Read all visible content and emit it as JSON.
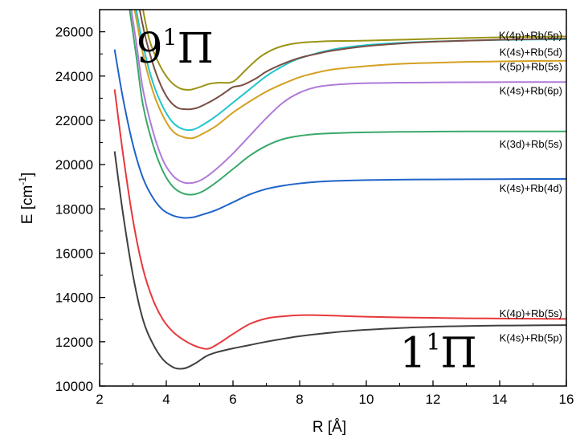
{
  "chart_data": {
    "type": "line",
    "title": "",
    "xlabel": "R [Å]",
    "ylabel_main": "E [cm",
    "ylabel_sup": "-1",
    "ylabel_tail": "]",
    "xlim": [
      2,
      16
    ],
    "ylim": [
      10000,
      27000
    ],
    "xticks": [
      2,
      4,
      6,
      8,
      10,
      12,
      14,
      16
    ],
    "yticks": [
      10000,
      12000,
      14000,
      16000,
      18000,
      20000,
      22000,
      24000,
      26000
    ],
    "grid": false,
    "legend": "none",
    "annotations": [
      {
        "main": "9",
        "sup": "1",
        "tail": "Π",
        "anchor": [
          3.1,
          24600
        ]
      },
      {
        "main": "1",
        "sup": "1",
        "tail": "Π",
        "anchor": [
          11.0,
          10850
        ]
      }
    ],
    "series": [
      {
        "name": "K(4s)+Rb(5p)",
        "color": "#404040",
        "label_y": 12200,
        "x": [
          2.45,
          2.7,
          3.0,
          3.3,
          3.6,
          3.9,
          4.2,
          4.4,
          4.6,
          4.9,
          5.2,
          5.5,
          6.0,
          6.5,
          7.0,
          8.0,
          9.0,
          10.0,
          11.0,
          12.0,
          13.0,
          14.0,
          15.0,
          16.0
        ],
        "y": [
          20600,
          17800,
          15000,
          13000,
          11900,
          11200,
          10850,
          10780,
          10820,
          11050,
          11350,
          11520,
          11700,
          11850,
          12000,
          12250,
          12420,
          12540,
          12620,
          12680,
          12710,
          12730,
          12740,
          12750
        ]
      },
      {
        "name": "K(4p)+Rb(5s)",
        "color": "#e8383b",
        "label_y": 13300,
        "x": [
          2.45,
          2.7,
          3.0,
          3.3,
          3.6,
          3.9,
          4.2,
          4.5,
          4.8,
          5.1,
          5.3,
          5.6,
          6.0,
          6.5,
          7.0,
          7.5,
          8.0,
          8.5,
          9.0,
          10.0,
          11.0,
          12.0,
          13.0,
          14.0,
          15.0,
          16.0
        ],
        "y": [
          23400,
          20500,
          17500,
          15300,
          13900,
          13000,
          12450,
          12100,
          11850,
          11700,
          11700,
          11950,
          12350,
          12800,
          13050,
          13150,
          13200,
          13200,
          13180,
          13130,
          13100,
          13080,
          13060,
          13050,
          13040,
          13030
        ]
      },
      {
        "name": "K(4s)+Rb(4d)",
        "color": "#1f64c8",
        "label_y": 18950,
        "x": [
          2.45,
          2.7,
          3.0,
          3.3,
          3.6,
          3.9,
          4.2,
          4.5,
          4.8,
          5.1,
          5.5,
          6.0,
          6.5,
          7.0,
          7.5,
          8.0,
          8.5,
          9.0,
          10.0,
          11.0,
          12.0,
          13.0,
          14.0,
          15.0,
          16.0
        ],
        "y": [
          25200,
          23000,
          20900,
          19400,
          18500,
          17950,
          17700,
          17600,
          17620,
          17750,
          17950,
          18300,
          18650,
          18900,
          19050,
          19150,
          19220,
          19260,
          19300,
          19320,
          19330,
          19340,
          19345,
          19350,
          19350
        ]
      },
      {
        "name": "K(3d)+Rb(5s)",
        "color": "#3aa86a",
        "label_y": 20950,
        "x": [
          2.9,
          3.1,
          3.3,
          3.6,
          3.9,
          4.2,
          4.5,
          4.8,
          5.1,
          5.5,
          6.0,
          6.5,
          7.0,
          7.5,
          8.0,
          8.5,
          9.0,
          10.0,
          11.0,
          12.0,
          13.0,
          14.0,
          15.0,
          16.0
        ],
        "y": [
          27000,
          24900,
          22700,
          20900,
          19700,
          19000,
          18700,
          18650,
          18800,
          19200,
          19800,
          20400,
          20850,
          21150,
          21300,
          21380,
          21420,
          21460,
          21480,
          21490,
          21500,
          21500,
          21500,
          21500
        ]
      },
      {
        "name": "K(4s)+Rb(6p)",
        "color": "#b07ad8",
        "label_y": 23350,
        "x": [
          2.95,
          3.1,
          3.3,
          3.6,
          3.9,
          4.2,
          4.5,
          4.8,
          5.1,
          5.5,
          6.0,
          6.5,
          7.0,
          7.5,
          8.0,
          8.5,
          9.0,
          9.5,
          10.0,
          11.0,
          12.0,
          13.0,
          14.0,
          15.0,
          16.0
        ],
        "y": [
          27000,
          25500,
          23400,
          21500,
          20200,
          19500,
          19200,
          19180,
          19350,
          19800,
          20500,
          21300,
          22100,
          22800,
          23250,
          23500,
          23600,
          23650,
          23680,
          23700,
          23710,
          23720,
          23725,
          23730,
          23730
        ]
      },
      {
        "name": "K(5p)+Rb(5s)",
        "color": "#d4a020",
        "label_y": 24450,
        "x": [
          3.05,
          3.3,
          3.6,
          3.9,
          4.2,
          4.5,
          4.8,
          5.1,
          5.5,
          6.0,
          6.5,
          7.0,
          7.5,
          8.0,
          8.5,
          9.0,
          10.0,
          11.0,
          12.0,
          13.0,
          14.0,
          15.0,
          16.0
        ],
        "y": [
          27000,
          25000,
          23300,
          22200,
          21500,
          21250,
          21200,
          21400,
          21750,
          22350,
          22850,
          23300,
          23650,
          23950,
          24150,
          24300,
          24450,
          24550,
          24600,
          24640,
          24660,
          24680,
          24690
        ]
      },
      {
        "name": "K(4s)+Rb(5d)",
        "color": "#22c4cc",
        "label_y": 25100,
        "x": [
          3.1,
          3.3,
          3.6,
          3.9,
          4.2,
          4.5,
          4.8,
          5.1,
          5.5,
          6.0,
          6.5,
          7.0,
          7.5,
          8.0,
          9.0,
          10.0,
          11.0,
          12.0,
          13.0,
          14.0,
          15.0,
          16.0
        ],
        "y": [
          27000,
          25400,
          23700,
          22600,
          21900,
          21600,
          21580,
          21800,
          22200,
          22800,
          23400,
          24000,
          24450,
          24800,
          25200,
          25400,
          25500,
          25560,
          25600,
          25630,
          25650,
          25660
        ]
      },
      {
        "name": "K(4s)+Rb(5d)",
        "color": "#7a4e44",
        "label_y": 25100,
        "x": [
          3.2,
          3.4,
          3.7,
          4.0,
          4.3,
          4.6,
          4.9,
          5.2,
          5.5,
          5.8,
          6.0,
          6.3,
          6.7,
          7.0,
          7.5,
          8.0,
          8.5,
          9.0,
          10.0,
          11.0,
          12.0,
          13.0,
          14.0,
          15.0,
          16.0
        ],
        "y": [
          27000,
          25600,
          24100,
          23100,
          22600,
          22500,
          22550,
          22750,
          23000,
          23300,
          23500,
          23600,
          23900,
          24200,
          24550,
          24820,
          25000,
          25150,
          25350,
          25470,
          25550,
          25600,
          25640,
          25670,
          25690
        ]
      },
      {
        "name": "K(4p)+Rb(5p)",
        "color": "#9b9414",
        "label_y": 25850,
        "x": [
          3.3,
          3.5,
          3.8,
          4.1,
          4.4,
          4.7,
          5.0,
          5.3,
          5.6,
          5.9,
          6.1,
          6.4,
          6.8,
          7.2,
          7.6,
          8.0,
          8.5,
          9.0,
          10.0,
          11.0,
          12.0,
          13.0,
          14.0,
          15.0,
          16.0
        ],
        "y": [
          27000,
          25600,
          24500,
          23800,
          23450,
          23380,
          23500,
          23650,
          23700,
          23700,
          23850,
          24300,
          24850,
          25200,
          25400,
          25500,
          25550,
          25580,
          25600,
          25640,
          25680,
          25720,
          25750,
          25770,
          25790
        ]
      }
    ]
  }
}
